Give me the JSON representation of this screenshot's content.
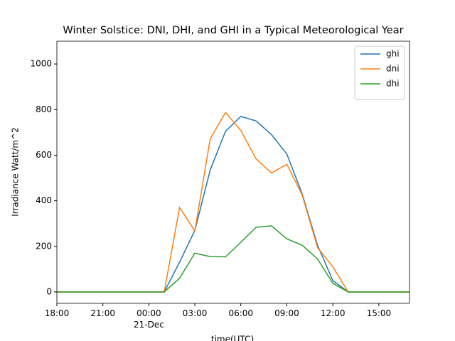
{
  "chart_data": {
    "type": "line",
    "title": "Winter Solstice: DNI, DHI, and GHI in a Typical Meteorological Year",
    "x_label": "time(UTC)",
    "y_label": "Irradiance Watt/m^2",
    "categories": [
      "18:00",
      null,
      null,
      "21:00",
      null,
      null,
      "00:00\n21-Dec",
      null,
      null,
      "03:00",
      null,
      null,
      "06:00",
      null,
      null,
      "09:00",
      null,
      null,
      "12:00",
      null,
      null,
      "15:00",
      null,
      null
    ],
    "series": [
      {
        "name": "ghi",
        "color": "#1f77b4",
        "values": [
          0,
          0,
          0,
          0,
          0,
          0,
          0,
          0,
          130,
          270,
          535,
          705,
          770,
          750,
          690,
          605,
          430,
          205,
          50,
          0,
          0,
          0,
          0,
          0
        ]
      },
      {
        "name": "dni",
        "color": "#ff7f0e",
        "values": [
          0,
          0,
          0,
          0,
          0,
          0,
          0,
          0,
          370,
          268,
          672,
          787,
          708,
          583,
          522,
          560,
          425,
          195,
          110,
          0,
          0,
          0,
          0,
          0
        ]
      },
      {
        "name": "dhi",
        "color": "#2ca02c",
        "values": [
          0,
          0,
          0,
          0,
          0,
          0,
          0,
          0,
          60,
          170,
          155,
          154,
          218,
          284,
          290,
          233,
          205,
          145,
          38,
          0,
          0,
          0,
          0,
          0
        ]
      }
    ],
    "ylim": [
      -50,
      1100
    ],
    "yticks": [
      0,
      200,
      400,
      600,
      800,
      1000
    ],
    "legend": "upper right"
  }
}
